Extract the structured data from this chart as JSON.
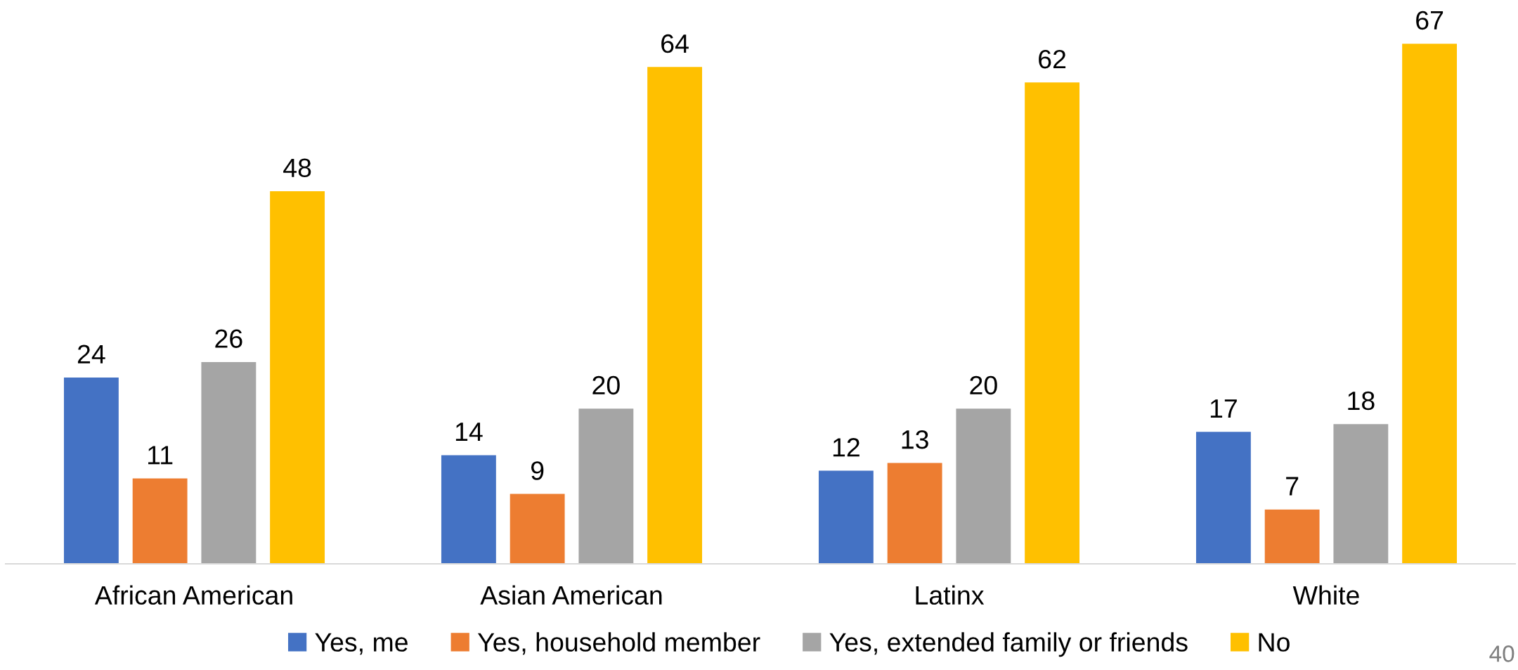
{
  "chart_data": {
    "type": "bar",
    "categories": [
      "African American",
      "Asian American",
      "Latinx",
      "White"
    ],
    "series": [
      {
        "name": "Yes, me",
        "color": "#4472c4",
        "values": [
          24,
          14,
          12,
          17
        ]
      },
      {
        "name": "Yes, household member",
        "color": "#ed7d31",
        "values": [
          11,
          9,
          13,
          7
        ]
      },
      {
        "name": "Yes, extended family or friends",
        "color": "#a5a5a5",
        "values": [
          26,
          20,
          20,
          18
        ]
      },
      {
        "name": "No",
        "color": "#ffc000",
        "values": [
          48,
          64,
          62,
          67
        ]
      }
    ],
    "data_labels": true,
    "legend": "bottom",
    "annotations": [
      "40"
    ]
  }
}
